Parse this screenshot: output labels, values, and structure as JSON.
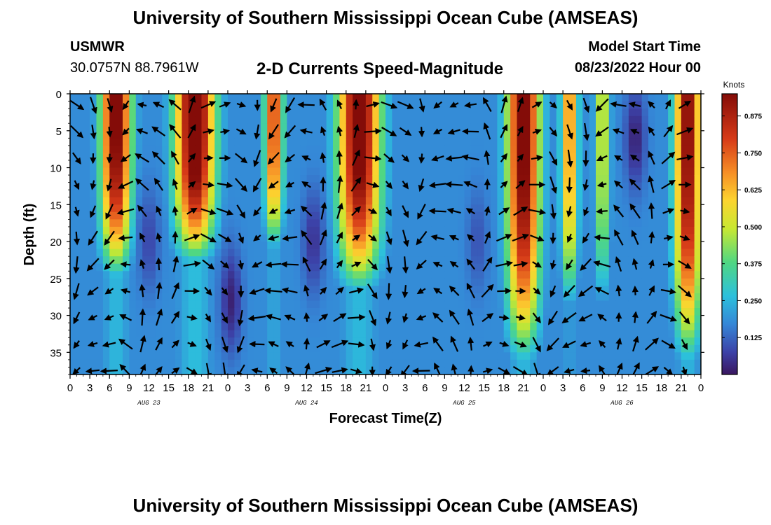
{
  "header": {
    "title": "University of Southern Mississippi Ocean Cube (AMSEAS)",
    "station": "USMWR",
    "coords": "30.0757N  88.7961W",
    "subtitle": "2-D Currents Speed-Magnitude",
    "model_start_label": "Model Start Time",
    "model_start_value": "08/23/2022 Hour 00"
  },
  "footer": {
    "title": "University of Southern Mississippi Ocean Cube (AMSEAS)"
  },
  "chart_data": {
    "type": "heatmap",
    "title": "2-D Currents Speed-Magnitude",
    "xlabel": "Forecast Time(Z)",
    "ylabel": "Depth (ft)",
    "x_hours_range": [
      0,
      96
    ],
    "xtick_labels": [
      "0",
      "3",
      "6",
      "9",
      "12",
      "15",
      "18",
      "21",
      "0",
      "3",
      "6",
      "9",
      "12",
      "15",
      "18",
      "21",
      "0",
      "3",
      "6",
      "9",
      "12",
      "15",
      "18",
      "21",
      "0",
      "3",
      "6",
      "9",
      "12",
      "15",
      "18",
      "21",
      "0"
    ],
    "day_labels": [
      "AUG 23",
      "AUG 24",
      "AUG 25",
      "AUG 26"
    ],
    "ylim": [
      0,
      38
    ],
    "yticks": [
      0,
      5,
      10,
      15,
      20,
      25,
      30,
      35
    ],
    "colorbar": {
      "title": "Knots",
      "ticks": [
        "0.875",
        "0.750",
        "0.625",
        "0.500",
        "0.375",
        "0.250",
        "0.125"
      ],
      "range": [
        0,
        0.95
      ]
    },
    "speed_peaks": [
      {
        "hour": 7,
        "speed": 0.88,
        "width_hours": 2.3,
        "decay_depth_ft": 26
      },
      {
        "hour": 19,
        "speed": 0.95,
        "width_hours": 3.0,
        "decay_depth_ft": 24
      },
      {
        "hour": 31,
        "speed": 0.7,
        "width_hours": 1.4,
        "decay_depth_ft": 22
      },
      {
        "hour": 44,
        "speed": 0.9,
        "width_hours": 3.2,
        "decay_depth_ft": 28
      },
      {
        "hour": 69,
        "speed": 0.88,
        "width_hours": 2.5,
        "decay_depth_ft": 38
      },
      {
        "hour": 76,
        "speed": 0.6,
        "width_hours": 1.3,
        "decay_depth_ft": 30
      },
      {
        "hour": 81,
        "speed": 0.42,
        "width_hours": 1.2,
        "decay_depth_ft": 30
      },
      {
        "hour": 94,
        "speed": 0.85,
        "width_hours": 2.0,
        "decay_depth_ft": 38
      }
    ],
    "speed_troughs": [
      {
        "hour": 24.5,
        "depth_ft": 28,
        "speed": 0.02
      },
      {
        "hour": 86,
        "depth_ft": 6,
        "speed": 0.02
      },
      {
        "hour": 37,
        "depth_ft": 20,
        "speed": 0.05
      },
      {
        "hour": 12,
        "depth_ft": 20,
        "speed": 0.08
      },
      {
        "hour": 62,
        "depth_ft": 20,
        "speed": 0.1
      }
    ]
  }
}
